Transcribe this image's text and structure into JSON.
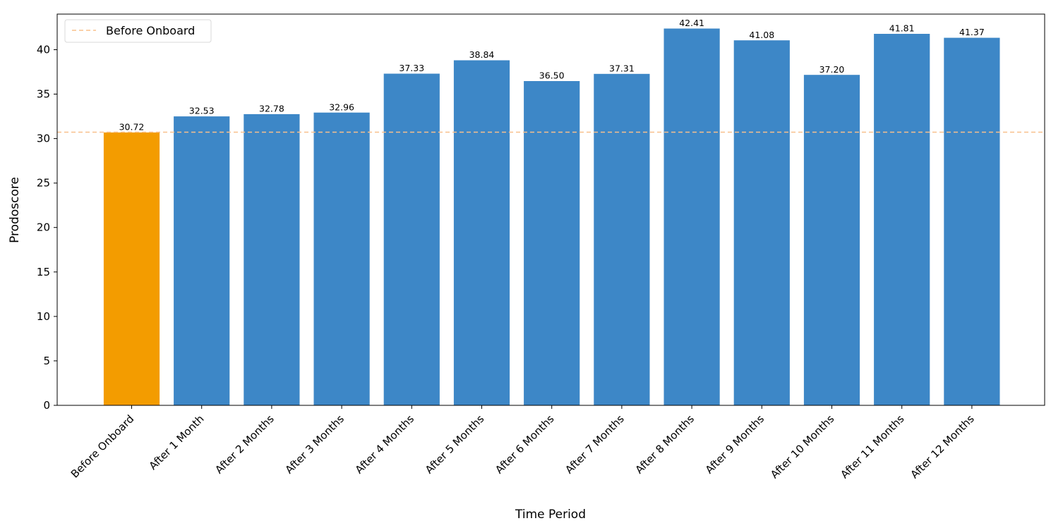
{
  "chart_data": {
    "type": "bar",
    "title": "",
    "xlabel": "Time Period",
    "ylabel": "Prodoscore",
    "ylim": [
      0,
      44
    ],
    "yticks": [
      0,
      5,
      10,
      15,
      20,
      25,
      30,
      35,
      40
    ],
    "categories": [
      "Before Onboard",
      "After 1 Month",
      "After 2 Months",
      "After 3 Months",
      "After 4 Months",
      "After 5 Months",
      "After 6 Months",
      "After 7 Months",
      "After 8 Months",
      "After 9 Months",
      "After 10 Months",
      "After 11 Months",
      "After 12 Months"
    ],
    "values": [
      30.72,
      32.53,
      32.78,
      32.96,
      37.33,
      38.84,
      36.5,
      37.31,
      42.41,
      41.08,
      37.2,
      41.81,
      41.37
    ],
    "value_labels": [
      "30.72",
      "32.53",
      "32.78",
      "32.96",
      "37.33",
      "38.84",
      "36.50",
      "37.31",
      "42.41",
      "41.08",
      "37.20",
      "41.81",
      "41.37"
    ],
    "bar_colors": [
      "#f39c00",
      "#3d87c7",
      "#3d87c7",
      "#3d87c7",
      "#3d87c7",
      "#3d87c7",
      "#3d87c7",
      "#3d87c7",
      "#3d87c7",
      "#3d87c7",
      "#3d87c7",
      "#3d87c7",
      "#3d87c7"
    ],
    "reference_line": {
      "label": "Before Onboard",
      "value": 30.72,
      "color": "#f8c08c",
      "style": "dashed"
    },
    "legend": {
      "position": "top-left",
      "entries": [
        "Before Onboard"
      ]
    },
    "grid": false
  }
}
